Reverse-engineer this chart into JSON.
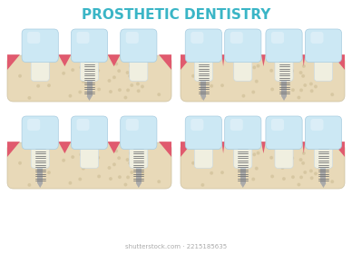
{
  "title": "PROSTHETIC DENTISTRY",
  "title_color": "#3ab5c6",
  "title_fontsize": 11,
  "bg_color": "#ffffff",
  "bone_color": "#e8d9b8",
  "bone_dot_color": "#d4c49e",
  "gum_color": "#e05a6e",
  "tooth_color": "#cce8f4",
  "tooth_highlight": "#e8f5fc",
  "tooth_root_color": "#f0efe0",
  "implant_color": "#aaaaaa",
  "implant_thread_color": "#777777",
  "shutterstock_text": "shutterstock.com · 2215185635",
  "shutterstock_color": "#aaaaaa"
}
